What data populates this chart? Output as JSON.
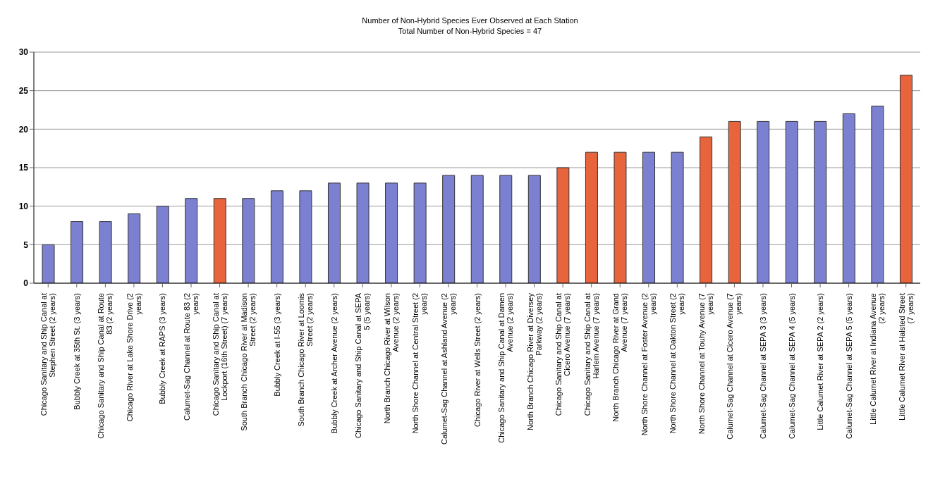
{
  "chart_data": {
    "type": "bar",
    "title": "Number of Non-Hybrid Species Ever Observed at Each Station",
    "subtitle": "Total Number of Non-Hybrid Species = 47",
    "categories": [
      "Chicago Sanitary and Ship Canal at Stephen Street (2 years)",
      "Bubbly Creek at 35th St. (3 years)",
      "Chicago Sanitary and Ship Canal at Route 83 (2 years)",
      "Chicago River at Lake Shore Drive (2 years)",
      "Bubbly Creek at RAPS (3 years)",
      "Calumet-Sag Channel at Route 83 (2 years)",
      "Chicago Sanitary and Ship Canal at Lockport (16th Street) (7 years)",
      "South Branch Chicago River at Madison Street (2 years)",
      "Bubbly Creek at I-55 (3 years)",
      "South Branch Chicago River at Loomis Street (2 years)",
      "Bubbly Creek at Archer Avenue (2 years)",
      "Chicago Sanitary and Ship Canal at SEPA 5 (5 years)",
      "North Branch Chicago River at Wilson Avenue (2 years)",
      "North Shore Channel at Central Street (2 years)",
      "Calumet-Sag Channel at Ashland Avenue (2 years)",
      "Chicago River at Wells Street (2 years)",
      "Chicago Sanitary and Ship Canal at Damen Avenue (2 years)",
      "North Branch Chicago River at Diversey Parkway (2 years)",
      "Chicago Sanitary and Ship Canal at Cicero Avenue (7 years)",
      "Chicago Sanitary and Ship Canal at Harlem Avenue (7 years)",
      "North Branch Chicago River at Grand Avenue (7 years)",
      "North Shore Channel at Foster Avenue (2 years)",
      "North Shore Channel at Oakton Street (2 years)",
      "North Shore Channel at Touhy Avenue (7 years)",
      "Calumet-Sag Channel at Cicero Avenue (7 years)",
      "Calumet-Sag Channel at SEPA 3 (3 years)",
      "Calumet-Sag Channel at SEPA 4 (5 years)",
      "Little Calumet River at SEPA 2 (2 years)",
      "Calumet-Sag Channel at SEPA 5 (5 years)",
      "Little Calumet River at Indiana Avenue (2 years)",
      "Little Calumet River at Halsted Street (7 years)"
    ],
    "values": [
      5,
      8,
      8,
      9,
      10,
      11,
      11,
      11,
      12,
      12,
      13,
      13,
      13,
      13,
      14,
      14,
      14,
      14,
      15,
      17,
      17,
      17,
      17,
      19,
      21,
      21,
      21,
      21,
      22,
      23,
      27
    ],
    "colors": [
      "#7b80d0",
      "#7b80d0",
      "#7b80d0",
      "#7b80d0",
      "#7b80d0",
      "#7b80d0",
      "#e8643c",
      "#7b80d0",
      "#7b80d0",
      "#7b80d0",
      "#7b80d0",
      "#7b80d0",
      "#7b80d0",
      "#7b80d0",
      "#7b80d0",
      "#7b80d0",
      "#7b80d0",
      "#7b80d0",
      "#e8643c",
      "#e8643c",
      "#e8643c",
      "#7b80d0",
      "#7b80d0",
      "#e8643c",
      "#e8643c",
      "#7b80d0",
      "#7b80d0",
      "#7b80d0",
      "#7b80d0",
      "#7b80d0",
      "#e8643c"
    ],
    "ylim": [
      0,
      30
    ],
    "yticks": [
      0,
      5,
      10,
      15,
      20,
      25,
      30
    ],
    "grid": "y"
  }
}
